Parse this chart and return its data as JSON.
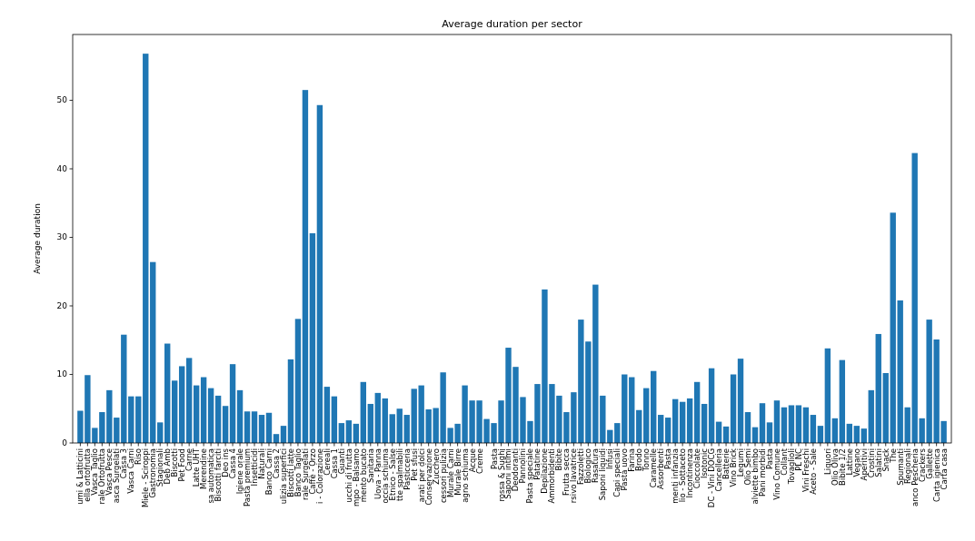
{
  "chart_data": {
    "type": "bar",
    "title": "Average duration per sector",
    "ylabel": "Average duration",
    "categories": [
      "umi & Latticini",
      "ella ortofrutta",
      "Vasca Taglio",
      "rale Ortofrutta",
      "Vasca Pesce",
      "asca Surgelati",
      "Cassa 3",
      "Vasca Carni",
      "Riso",
      "Miele - Sciroppi",
      "Gastronomia",
      "Stagionali",
      "Deb Amb",
      "Biscotti",
      "Pet Food",
      "Carne",
      "Latte UHT",
      "Merendine",
      "sa automatica",
      "Biscotti farciti",
      "Deo ins",
      "Cassa 4",
      "Igiene orale",
      "Pasta premium",
      "Insetticidi",
      "Naturali",
      "Banco Carni",
      "Cassa 2",
      "ulizia superfici",
      "Biscotti latte",
      "Banco Taglio",
      "rale Surgelati",
      "Caffè - Orzo",
      "i - Colorazione",
      "Cereali",
      "Cassa 1",
      "Guanti",
      "ucchi di frutta",
      "mpo - Balsamo",
      "mento bucato",
      "Sanitaria",
      "Uova - Panna",
      "occia schiuma",
      "Etnico - Salse",
      "tte spalmabili",
      "Pasticceria",
      "Pet sfusi",
      "arati per dolci",
      "Conservazione",
      "Zucchero",
      "cessori pulizia",
      "Murale Carni",
      "Murale Birre",
      "agno schiuma",
      "Acque",
      "Creme",
      null,
      "Pasta",
      "rossa & Sughi",
      "Saponi intimi",
      "Deodoranti",
      "Pannolini",
      "Pasta speciale",
      "Patatine",
      "Depilazione",
      "Ammorbidenti",
      "Bibite",
      "Frutta secca",
      "rsivo lavatrice",
      "Fazzoletti",
      "Biologico",
      "Rasatura",
      "Saponi liquidi",
      "Infusi",
      "Capi speciali",
      "Pasta uovo",
      "Farina",
      "Brodo",
      "Tonno",
      "Caramelle",
      "Assorbenti",
      "Pasta",
      "menti infanzia",
      "lio - Sottaceto",
      "Incontinenza",
      "Cioccolate",
      "Isotonic",
      "DC - Vini DOCG",
      "Cancelleria",
      "Batterie",
      "Vino Brick",
      "Legumi",
      "Olio Semi",
      "alviette bimbo",
      "Pani morbidi",
      "Pasta",
      "Vino Comune",
      "Collant",
      "Tovaglioli",
      "PL NC",
      "Vini Freschi",
      "Aceto - Sale",
      null,
      "Liquori",
      "Olio Oliva",
      "Bibite 1/2",
      "Lattine",
      "Vegano",
      "Aperitivi",
      "Crostini",
      "Salatini",
      "Snack",
      "The",
      "Spumanti",
      "Regionali",
      "anco Pescheria",
      "Crackers",
      "Gallette",
      "Carta igienica",
      "Carta casa"
    ],
    "values": [
      4.7,
      9.9,
      2.2,
      4.5,
      7.7,
      3.7,
      15.8,
      6.8,
      6.8,
      56.8,
      26.4,
      3.0,
      14.5,
      9.1,
      11.2,
      12.4,
      8.4,
      9.6,
      8.0,
      6.9,
      5.4,
      11.5,
      7.7,
      4.6,
      4.6,
      4.1,
      4.4,
      1.3,
      2.5,
      12.2,
      18.1,
      51.5,
      30.6,
      49.3,
      8.2,
      6.8,
      2.9,
      3.3,
      2.8,
      8.9,
      5.7,
      7.3,
      6.5,
      4.2,
      5.0,
      4.1,
      7.9,
      8.4,
      4.9,
      5.1,
      10.3,
      2.2,
      2.8,
      8.4,
      6.2,
      6.2,
      3.5,
      2.9,
      6.2,
      13.9,
      11.1,
      6.7,
      3.2,
      8.6,
      22.4,
      8.6,
      6.9,
      4.5,
      7.4,
      18.0,
      14.8,
      23.1,
      6.9,
      1.9,
      2.9,
      10.0,
      9.6,
      4.8,
      8.0,
      10.5,
      4.1,
      3.7,
      6.4,
      6.0,
      6.5,
      8.9,
      5.7,
      10.9,
      3.1,
      2.4,
      10.0,
      12.3,
      4.5,
      2.3,
      5.8,
      3.0,
      6.2,
      5.2,
      5.5,
      5.5,
      5.2,
      4.1,
      2.5,
      13.8,
      3.6,
      12.1,
      2.8,
      2.5,
      2.1,
      7.7,
      15.9,
      10.2,
      33.6,
      20.8,
      5.2,
      42.3,
      3.6,
      18.0,
      15.1,
      3.2
    ],
    "color": "#1f77b4",
    "ylim": [
      0,
      59.6
    ],
    "yticks": [
      0,
      10,
      20,
      30,
      40,
      50
    ]
  }
}
